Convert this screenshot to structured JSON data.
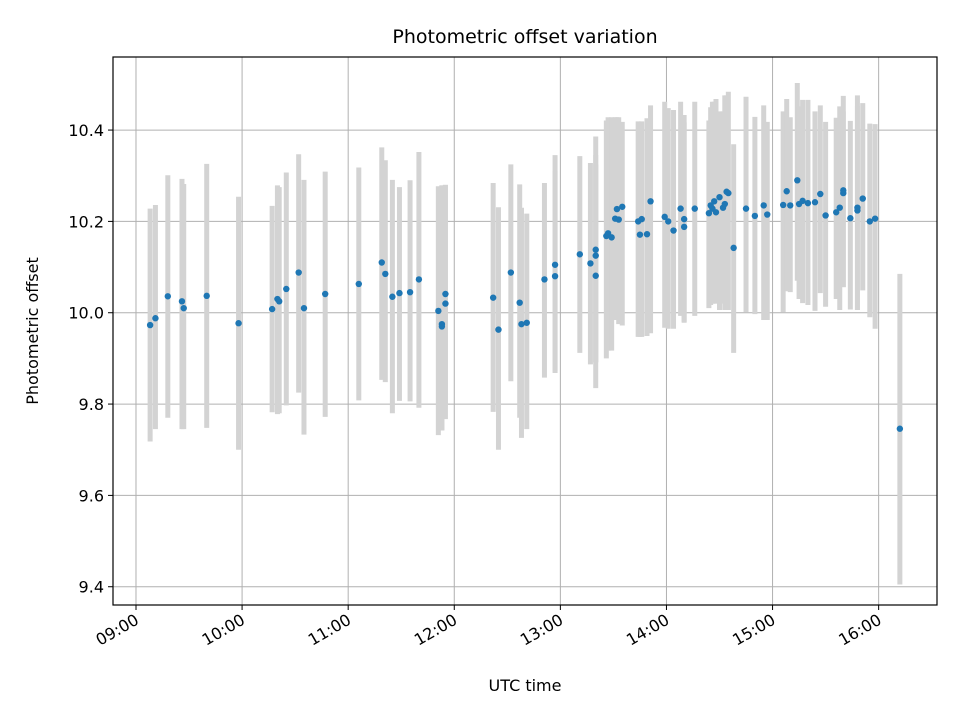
{
  "chart_data": {
    "type": "scatter",
    "title": "Photometric offset variation",
    "xlabel": "UTC time",
    "ylabel": "Photometric offset",
    "x_unit": "hours UTC",
    "xlim": [
      "08:47",
      "16:33"
    ],
    "ylim": [
      9.36,
      10.56
    ],
    "x_ticks": [
      "09:00",
      "10:00",
      "11:00",
      "12:00",
      "13:00",
      "14:00",
      "15:00",
      "16:00"
    ],
    "y_ticks": [
      "9.4",
      "9.6",
      "9.8",
      "10.0",
      "10.2",
      "10.4"
    ],
    "grid": true,
    "x_tick_rotation_deg": 30,
    "colors": {
      "points": "#1f77b4",
      "error_bars": "#d3d3d3",
      "grid": "#b0b0b0"
    },
    "series": [
      {
        "points": [
          [
            "09:08",
            9.973,
            9.718,
            10.228
          ],
          [
            "09:11",
            9.988,
            9.745,
            10.236
          ],
          [
            "09:18",
            10.036,
            9.77,
            10.301
          ],
          [
            "09:26",
            10.025,
            9.745,
            10.293
          ],
          [
            "09:27",
            10.01,
            9.745,
            10.282
          ],
          [
            "09:40",
            10.037,
            9.748,
            10.326
          ],
          [
            "09:58",
            9.977,
            9.7,
            10.254
          ],
          [
            "10:17",
            10.008,
            9.782,
            10.234
          ],
          [
            "10:20",
            10.03,
            9.778,
            10.279
          ],
          [
            "10:21",
            10.025,
            9.78,
            10.275
          ],
          [
            "10:25",
            10.052,
            9.797,
            10.307
          ],
          [
            "10:32",
            10.088,
            9.825,
            10.347
          ],
          [
            "10:35",
            10.01,
            9.733,
            10.291
          ],
          [
            "10:47",
            10.041,
            9.772,
            10.309
          ],
          [
            "11:06",
            10.063,
            9.808,
            10.318
          ],
          [
            "11:19",
            10.11,
            9.853,
            10.362
          ],
          [
            "11:21",
            10.085,
            9.848,
            10.334
          ],
          [
            "11:25",
            10.035,
            9.78,
            10.291
          ],
          [
            "11:29",
            10.043,
            9.807,
            10.275
          ],
          [
            "11:35",
            10.045,
            9.806,
            10.29
          ],
          [
            "11:40",
            10.073,
            9.792,
            10.352
          ],
          [
            "11:51",
            10.004,
            9.732,
            10.277
          ],
          [
            "11:53",
            9.975,
            9.742,
            10.279
          ],
          [
            "11:53",
            9.97,
            9.743,
            10.279
          ],
          [
            "11:55",
            10.02,
            9.767,
            10.28
          ],
          [
            "11:55",
            10.041,
            9.8,
            10.28
          ],
          [
            "12:22",
            10.033,
            9.783,
            10.284
          ],
          [
            "12:25",
            9.963,
            9.7,
            10.231
          ],
          [
            "12:32",
            10.088,
            9.85,
            10.325
          ],
          [
            "12:37",
            10.022,
            9.77,
            10.281
          ],
          [
            "12:38",
            9.975,
            9.726,
            10.23
          ],
          [
            "12:41",
            9.978,
            9.745,
            10.217
          ],
          [
            "12:51",
            10.073,
            9.858,
            10.284
          ],
          [
            "12:57",
            10.105,
            9.872,
            10.345
          ],
          [
            "12:57",
            10.08,
            9.868,
            10.31
          ],
          [
            "13:11",
            10.128,
            9.912,
            10.343
          ],
          [
            "13:17",
            10.108,
            9.887,
            10.328
          ],
          [
            "13:20",
            10.081,
            9.835,
            10.325
          ],
          [
            "13:20",
            10.138,
            9.891,
            10.386
          ],
          [
            "13:20",
            10.125,
            9.892,
            10.345
          ],
          [
            "13:26",
            10.168,
            9.9,
            10.421
          ],
          [
            "13:27",
            10.174,
            9.917,
            10.428
          ],
          [
            "13:29",
            10.165,
            9.917,
            10.428
          ],
          [
            "13:31",
            10.206,
            9.984,
            10.428
          ],
          [
            "13:32",
            10.227,
            9.984,
            10.428
          ],
          [
            "13:33",
            10.204,
            9.975,
            10.428
          ],
          [
            "13:35",
            10.232,
            9.972,
            10.418
          ],
          [
            "13:44",
            10.2,
            9.947,
            10.419
          ],
          [
            "13:45",
            10.171,
            9.947,
            10.415
          ],
          [
            "13:46",
            10.205,
            9.947,
            10.419
          ],
          [
            "13:49",
            10.172,
            9.949,
            10.426
          ],
          [
            "13:51",
            10.244,
            9.955,
            10.454
          ],
          [
            "13:59",
            10.21,
            9.967,
            10.462
          ],
          [
            "14:01",
            10.2,
            9.965,
            10.448
          ],
          [
            "14:04",
            10.18,
            9.965,
            10.444
          ],
          [
            "14:08",
            10.228,
            9.993,
            10.462
          ],
          [
            "14:10",
            10.205,
            9.98,
            10.433
          ],
          [
            "14:10",
            10.188,
            9.978,
            10.417
          ],
          [
            "14:16",
            10.228,
            9.993,
            10.462
          ],
          [
            "14:24",
            10.218,
            10.01,
            10.421
          ],
          [
            "14:25",
            10.235,
            10.017,
            10.45
          ],
          [
            "14:26",
            10.228,
            10.02,
            10.462
          ],
          [
            "14:27",
            10.244,
            10.02,
            10.462
          ],
          [
            "14:28",
            10.22,
            10.02,
            10.468
          ],
          [
            "14:30",
            10.253,
            10.006,
            10.441
          ],
          [
            "14:32",
            10.23,
            10.02,
            10.441
          ],
          [
            "14:33",
            10.238,
            10.006,
            10.476
          ],
          [
            "14:34",
            10.265,
            10.006,
            10.476
          ],
          [
            "14:35",
            10.262,
            10.006,
            10.484
          ],
          [
            "14:38",
            10.142,
            9.912,
            10.369
          ],
          [
            "14:45",
            10.228,
            10.001,
            10.473
          ],
          [
            "14:50",
            10.212,
            9.997,
            10.429
          ],
          [
            "14:55",
            10.235,
            9.984,
            10.454
          ],
          [
            "14:57",
            10.215,
            9.984,
            10.418
          ],
          [
            "15:06",
            10.236,
            10.001,
            10.441
          ],
          [
            "15:08",
            10.266,
            10.047,
            10.468
          ],
          [
            "15:10",
            10.235,
            10.045,
            10.428
          ],
          [
            "15:14",
            10.29,
            10.07,
            10.503
          ],
          [
            "15:15",
            10.238,
            10.03,
            10.452
          ],
          [
            "15:17",
            10.245,
            10.021,
            10.466
          ],
          [
            "15:20",
            10.24,
            10.017,
            10.466
          ],
          [
            "15:24",
            10.242,
            10.004,
            10.441
          ],
          [
            "15:27",
            10.26,
            10.043,
            10.454
          ],
          [
            "15:30",
            10.213,
            10.013,
            10.418
          ],
          [
            "15:36",
            10.22,
            10.03,
            10.427
          ],
          [
            "15:38",
            10.23,
            10.006,
            10.452
          ],
          [
            "15:40",
            10.268,
            10.056,
            10.475
          ],
          [
            "15:40",
            10.262,
            10.056,
            10.441
          ],
          [
            "15:44",
            10.207,
            10.007,
            10.42
          ],
          [
            "15:48",
            10.224,
            10.006,
            10.452
          ],
          [
            "15:48",
            10.23,
            10.006,
            10.476
          ],
          [
            "15:51",
            10.25,
            10.049,
            10.459
          ],
          [
            "15:55",
            10.2,
            9.99,
            10.414
          ],
          [
            "15:58",
            10.206,
            9.965,
            10.413
          ],
          [
            "16:12",
            9.746,
            9.405,
            10.085
          ]
        ]
      }
    ]
  }
}
